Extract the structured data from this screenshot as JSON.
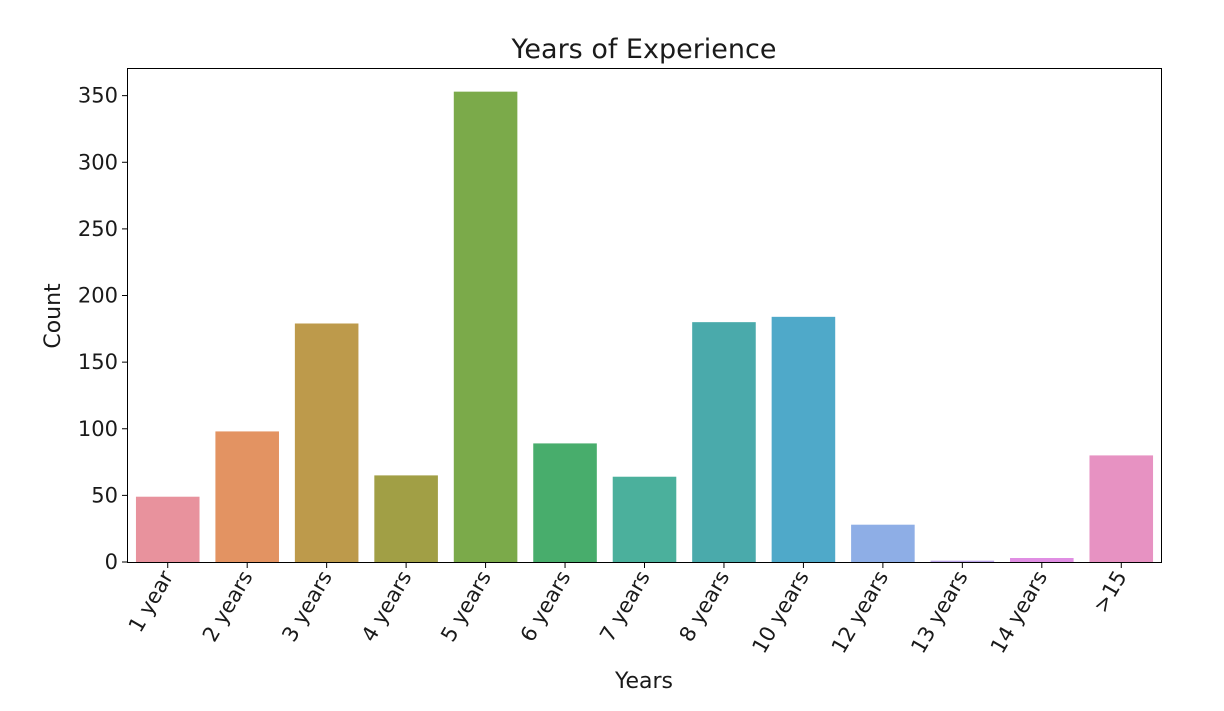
{
  "chart_data": {
    "type": "bar",
    "title": "Years of Experience",
    "xlabel": "Years",
    "ylabel": "Count",
    "ylim": [
      0,
      370
    ],
    "yticks": [
      0,
      50,
      100,
      150,
      200,
      250,
      300,
      350
    ],
    "grid": false,
    "categories": [
      "1 year",
      "2 years",
      "3 years",
      "4 years",
      "5 years",
      "6 years",
      "7 years",
      "8 years",
      "10 years",
      "12 years",
      "13 years",
      "14 years",
      ">15"
    ],
    "values": [
      49,
      98,
      179,
      65,
      353,
      89,
      64,
      180,
      184,
      28,
      1,
      3,
      80
    ],
    "colors": [
      "#e8929d",
      "#e39362",
      "#bd9a4b",
      "#a19f45",
      "#7baa4a",
      "#48ad6c",
      "#4bb09c",
      "#4aaaab",
      "#4fa9c9",
      "#8eaee6",
      "#b8a3e6",
      "#e08ee3",
      "#e792c2"
    ]
  }
}
